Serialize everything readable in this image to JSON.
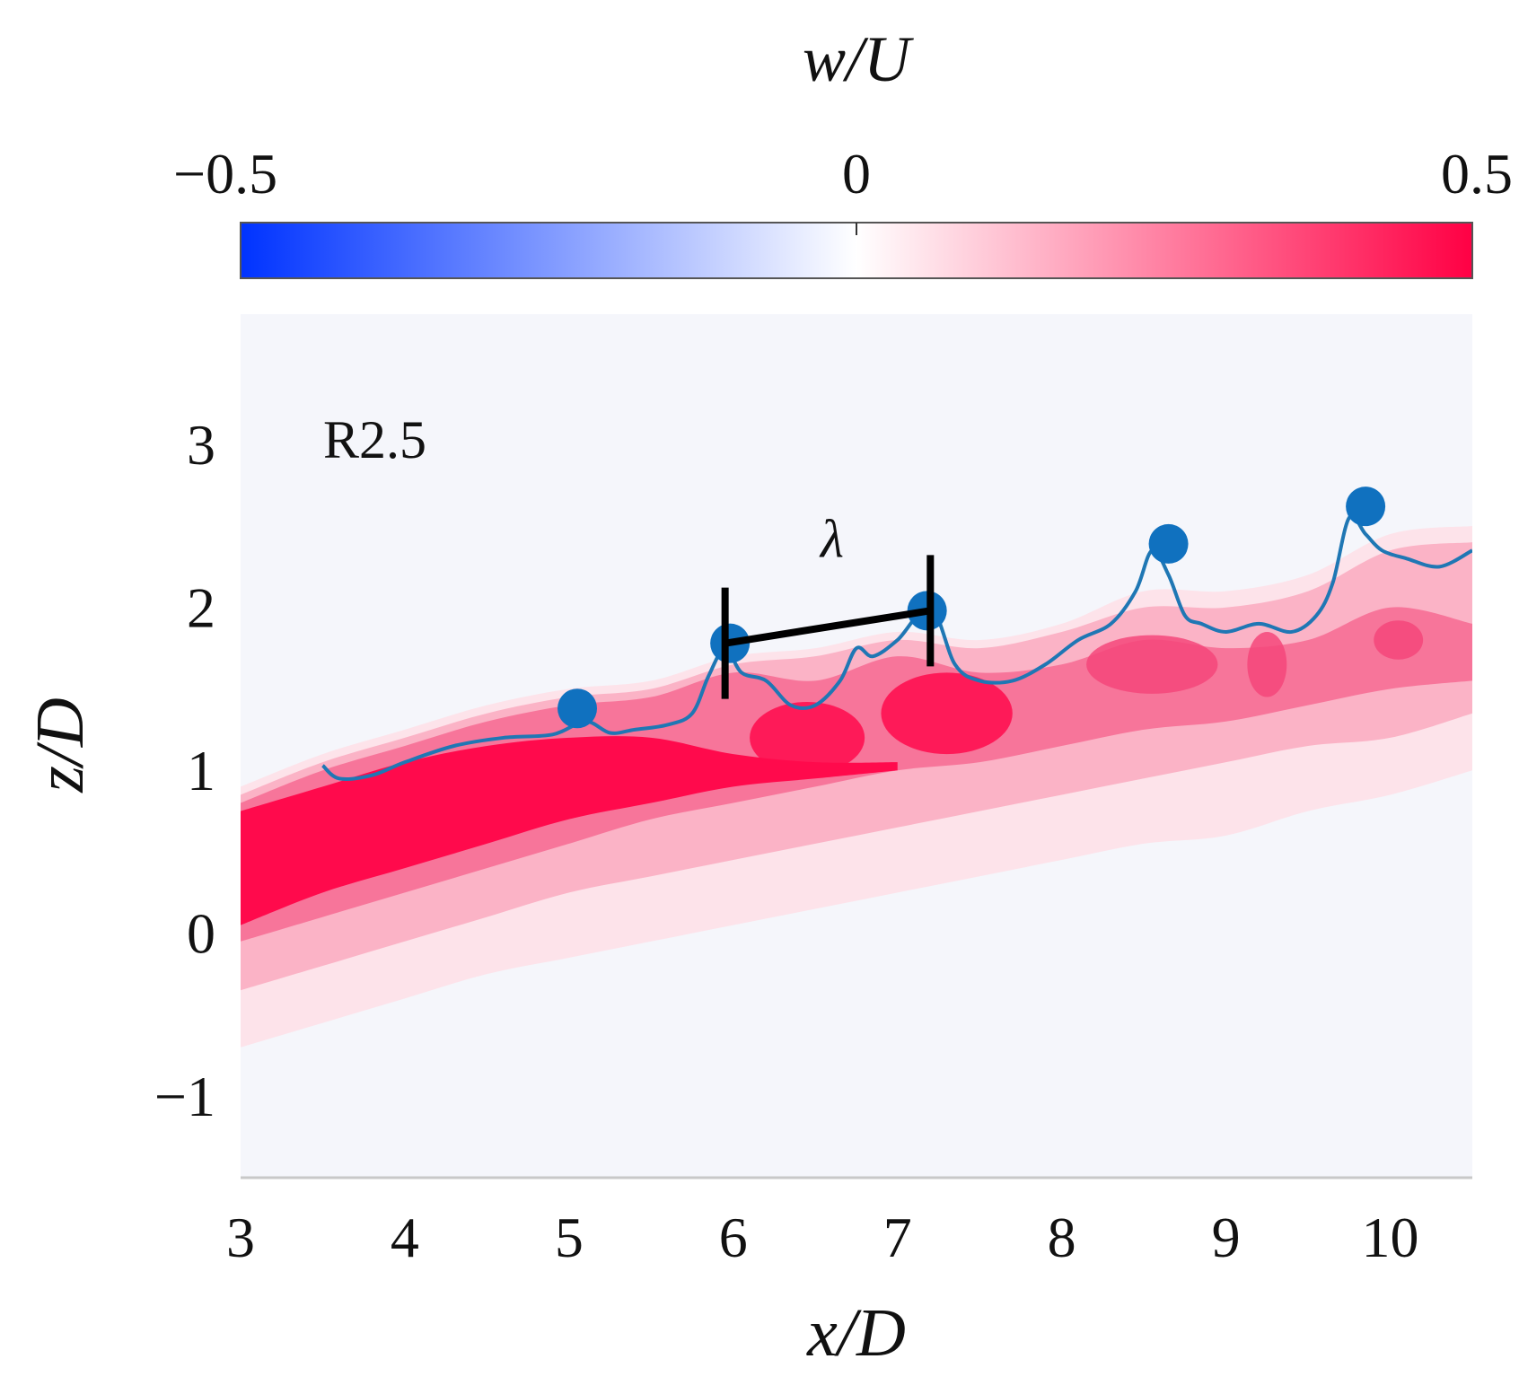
{
  "chart_data": {
    "type": "heatmap",
    "panel_label": "R2.5",
    "xlabel": "x/D",
    "ylabel": "z/D",
    "xlim": [
      3,
      10.5
    ],
    "ylim": [
      -1.5,
      3.8
    ],
    "x_ticks": [
      3,
      4,
      5,
      6,
      7,
      8,
      9,
      10
    ],
    "y_ticks": [
      -1,
      0,
      1,
      2,
      3
    ],
    "colorbar": {
      "label": "w/U",
      "min": -0.5,
      "max": 0.5,
      "tick_labels": [
        "−0.5",
        "0",
        "0.5"
      ],
      "tick_values": [
        -0.5,
        0,
        0.5
      ],
      "colors": [
        "#0033ff",
        "#ffffff",
        "#ff0044"
      ]
    },
    "contour_levels": [
      {
        "level": 0.05,
        "color": "#fde3ea",
        "upper": [
          [
            3.0,
            0.9
          ],
          [
            3.5,
            1.1
          ],
          [
            4.0,
            1.25
          ],
          [
            4.5,
            1.4
          ],
          [
            5.0,
            1.5
          ],
          [
            5.5,
            1.55
          ],
          [
            6.0,
            1.7
          ],
          [
            6.5,
            1.75
          ],
          [
            7.0,
            1.85
          ],
          [
            7.5,
            1.8
          ],
          [
            8.0,
            1.9
          ],
          [
            8.5,
            2.1
          ],
          [
            9.0,
            2.1
          ],
          [
            9.5,
            2.2
          ],
          [
            10.0,
            2.45
          ],
          [
            10.5,
            2.5
          ]
        ],
        "lower": [
          [
            3.0,
            -0.7
          ],
          [
            3.5,
            -0.55
          ],
          [
            4.0,
            -0.4
          ],
          [
            4.5,
            -0.25
          ],
          [
            5.0,
            -0.15
          ],
          [
            5.5,
            -0.05
          ],
          [
            6.0,
            0.05
          ],
          [
            6.5,
            0.15
          ],
          [
            7.0,
            0.25
          ],
          [
            7.5,
            0.35
          ],
          [
            8.0,
            0.45
          ],
          [
            8.5,
            0.55
          ],
          [
            9.0,
            0.6
          ],
          [
            9.5,
            0.75
          ],
          [
            10.0,
            0.85
          ],
          [
            10.5,
            1.0
          ]
        ]
      },
      {
        "level": 0.15,
        "color": "#fbb3c6",
        "upper": [
          [
            3.0,
            0.85
          ],
          [
            3.5,
            1.05
          ],
          [
            4.0,
            1.2
          ],
          [
            4.5,
            1.35
          ],
          [
            5.0,
            1.45
          ],
          [
            5.5,
            1.5
          ],
          [
            6.0,
            1.65
          ],
          [
            6.5,
            1.7
          ],
          [
            7.0,
            1.8
          ],
          [
            7.5,
            1.75
          ],
          [
            8.0,
            1.85
          ],
          [
            8.5,
            2.0
          ],
          [
            9.0,
            2.0
          ],
          [
            9.5,
            2.1
          ],
          [
            10.0,
            2.35
          ],
          [
            10.5,
            2.4
          ]
        ],
        "lower": [
          [
            3.0,
            -0.35
          ],
          [
            3.5,
            -0.2
          ],
          [
            4.0,
            -0.05
          ],
          [
            4.5,
            0.1
          ],
          [
            5.0,
            0.25
          ],
          [
            5.5,
            0.35
          ],
          [
            6.0,
            0.45
          ],
          [
            6.5,
            0.55
          ],
          [
            7.0,
            0.65
          ],
          [
            7.5,
            0.75
          ],
          [
            8.0,
            0.85
          ],
          [
            8.5,
            0.95
          ],
          [
            9.0,
            1.05
          ],
          [
            9.5,
            1.15
          ],
          [
            10.0,
            1.2
          ],
          [
            10.5,
            1.35
          ]
        ]
      },
      {
        "level": 0.3,
        "color": "#f7759a",
        "upper": [
          [
            3.0,
            0.8
          ],
          [
            3.5,
            1.0
          ],
          [
            4.0,
            1.15
          ],
          [
            4.5,
            1.3
          ],
          [
            5.0,
            1.4
          ],
          [
            5.5,
            1.45
          ],
          [
            6.0,
            1.6
          ],
          [
            6.5,
            1.55
          ],
          [
            7.0,
            1.7
          ],
          [
            7.5,
            1.6
          ],
          [
            8.0,
            1.65
          ],
          [
            8.5,
            1.8
          ],
          [
            9.0,
            1.75
          ],
          [
            9.5,
            1.8
          ],
          [
            10.0,
            2.0
          ],
          [
            10.5,
            1.9
          ]
        ],
        "lower": [
          [
            3.0,
            -0.05
          ],
          [
            3.5,
            0.1
          ],
          [
            4.0,
            0.25
          ],
          [
            4.5,
            0.4
          ],
          [
            5.0,
            0.55
          ],
          [
            5.5,
            0.7
          ],
          [
            6.0,
            0.8
          ],
          [
            6.5,
            0.9
          ],
          [
            7.0,
            1.0
          ],
          [
            7.5,
            1.05
          ],
          [
            8.0,
            1.15
          ],
          [
            8.5,
            1.25
          ],
          [
            9.0,
            1.3
          ],
          [
            9.5,
            1.4
          ],
          [
            10.0,
            1.5
          ],
          [
            10.5,
            1.55
          ]
        ]
      },
      {
        "level": 0.45,
        "color": "#ff0a4c",
        "upper": [
          [
            3.0,
            0.75
          ],
          [
            3.5,
            0.9
          ],
          [
            4.0,
            1.05
          ],
          [
            4.5,
            1.15
          ],
          [
            5.0,
            1.2
          ],
          [
            5.5,
            1.2
          ],
          [
            6.0,
            1.1
          ],
          [
            6.5,
            1.05
          ],
          [
            7.0,
            1.05
          ]
        ],
        "lower": [
          [
            3.0,
            0.05
          ],
          [
            3.5,
            0.25
          ],
          [
            4.0,
            0.4
          ],
          [
            4.5,
            0.55
          ],
          [
            5.0,
            0.7
          ],
          [
            5.5,
            0.8
          ],
          [
            6.0,
            0.9
          ],
          [
            6.5,
            0.95
          ],
          [
            7.0,
            1.0
          ]
        ]
      }
    ],
    "core_blobs": [
      {
        "x": 6.45,
        "z": 1.2,
        "rx": 0.35,
        "rz": 0.22,
        "color": "#ff0a4c"
      },
      {
        "x": 7.3,
        "z": 1.35,
        "rx": 0.4,
        "rz": 0.25,
        "color": "#ff0a4c"
      },
      {
        "x": 8.55,
        "z": 1.65,
        "rx": 0.4,
        "rz": 0.18,
        "color": "#f5467a"
      },
      {
        "x": 9.25,
        "z": 1.65,
        "rx": 0.12,
        "rz": 0.2,
        "color": "#f5467a"
      },
      {
        "x": 10.05,
        "z": 1.8,
        "rx": 0.15,
        "rz": 0.12,
        "color": "#f5467a"
      }
    ],
    "interface_line": {
      "color": "#1f77b4",
      "x": [
        3.5,
        3.6,
        3.8,
        4.0,
        4.3,
        4.6,
        4.9,
        5.1,
        5.25,
        5.4,
        5.6,
        5.75,
        5.85,
        5.95,
        6.05,
        6.2,
        6.35,
        6.5,
        6.65,
        6.75,
        6.85,
        7.0,
        7.2,
        7.35,
        7.5,
        7.7,
        7.9,
        8.1,
        8.3,
        8.45,
        8.55,
        8.65,
        8.75,
        8.85,
        9.0,
        9.2,
        9.4,
        9.55,
        9.65,
        9.75,
        9.85,
        9.95,
        10.1,
        10.3,
        10.5
      ],
      "z": [
        1.03,
        0.95,
        0.97,
        1.05,
        1.15,
        1.2,
        1.22,
        1.3,
        1.23,
        1.25,
        1.28,
        1.35,
        1.58,
        1.75,
        1.6,
        1.55,
        1.4,
        1.4,
        1.55,
        1.75,
        1.7,
        1.8,
        2.0,
        1.65,
        1.55,
        1.55,
        1.65,
        1.8,
        1.9,
        2.1,
        2.35,
        2.2,
        1.95,
        1.9,
        1.85,
        1.9,
        1.85,
        1.95,
        2.15,
        2.55,
        2.45,
        2.35,
        2.3,
        2.25,
        2.35
      ]
    },
    "markers": {
      "color": "#1071bf",
      "x": [
        5.05,
        5.98,
        7.18,
        8.65,
        9.85
      ],
      "z": [
        1.38,
        1.78,
        1.98,
        2.39,
        2.62
      ]
    },
    "annotation": {
      "label": "λ",
      "x1": 5.95,
      "z1": 1.78,
      "x2": 7.2,
      "z2": 1.98
    }
  }
}
